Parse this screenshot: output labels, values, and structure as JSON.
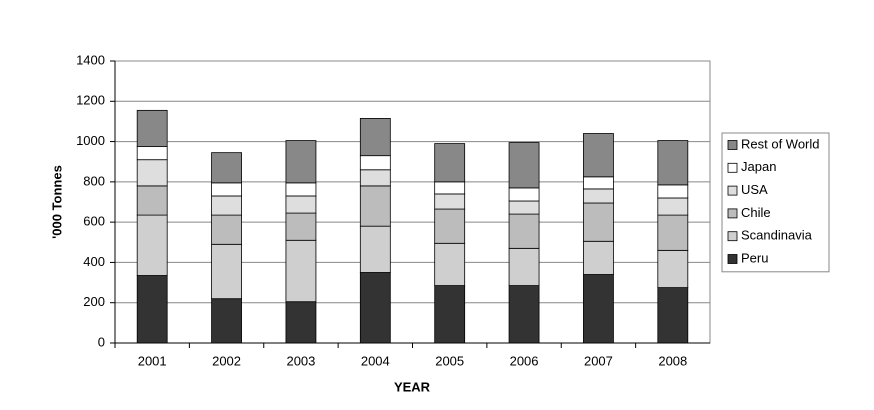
{
  "chart_data": {
    "type": "stacked_bar",
    "x_label": "YEAR",
    "y_label": "'000 Tonnes",
    "categories": [
      "2001",
      "2002",
      "2003",
      "2004",
      "2005",
      "2006",
      "2007",
      "2008"
    ],
    "series": [
      {
        "name": "Peru",
        "color": "#333333",
        "values": [
          335,
          220,
          205,
          350,
          285,
          285,
          340,
          275
        ]
      },
      {
        "name": "Scandinavia",
        "color": "#cfcfcf",
        "values": [
          300,
          270,
          305,
          230,
          210,
          185,
          165,
          185
        ]
      },
      {
        "name": "Chile",
        "color": "#bcbcbc",
        "values": [
          145,
          145,
          135,
          200,
          170,
          170,
          190,
          175
        ]
      },
      {
        "name": "USA",
        "color": "#dedede",
        "values": [
          130,
          95,
          85,
          80,
          75,
          65,
          70,
          85
        ]
      },
      {
        "name": "Japan",
        "color": "#ffffff",
        "values": [
          65,
          65,
          65,
          70,
          60,
          65,
          60,
          65
        ]
      },
      {
        "name": "Rest of World",
        "color": "#888888",
        "values": [
          180,
          150,
          210,
          185,
          190,
          225,
          215,
          220
        ]
      }
    ],
    "ylim": [
      0,
      1400
    ],
    "yticks": [
      0,
      200,
      400,
      600,
      800,
      1000,
      1200,
      1400
    ],
    "grid": true,
    "legend": "right"
  }
}
